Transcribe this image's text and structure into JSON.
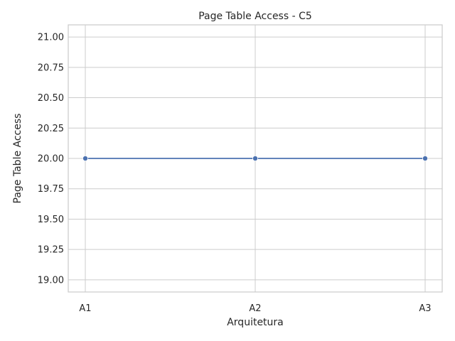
{
  "chart_data": {
    "type": "line",
    "title": "Page Table Access - C5",
    "xlabel": "Arquitetura",
    "ylabel": "Page Table Access",
    "categories": [
      "A1",
      "A2",
      "A3"
    ],
    "series": [
      {
        "values": [
          20,
          20,
          20
        ],
        "color": "#4c72b0"
      }
    ],
    "ylim": [
      18.9,
      21.1
    ],
    "yticks": [
      19.0,
      19.25,
      19.5,
      19.75,
      20.0,
      20.25,
      20.5,
      20.75,
      21.0
    ],
    "ytick_labels": [
      "19.00",
      "19.25",
      "19.50",
      "19.75",
      "20.00",
      "20.25",
      "20.50",
      "20.75",
      "21.00"
    ],
    "grid": true,
    "markers": true
  }
}
